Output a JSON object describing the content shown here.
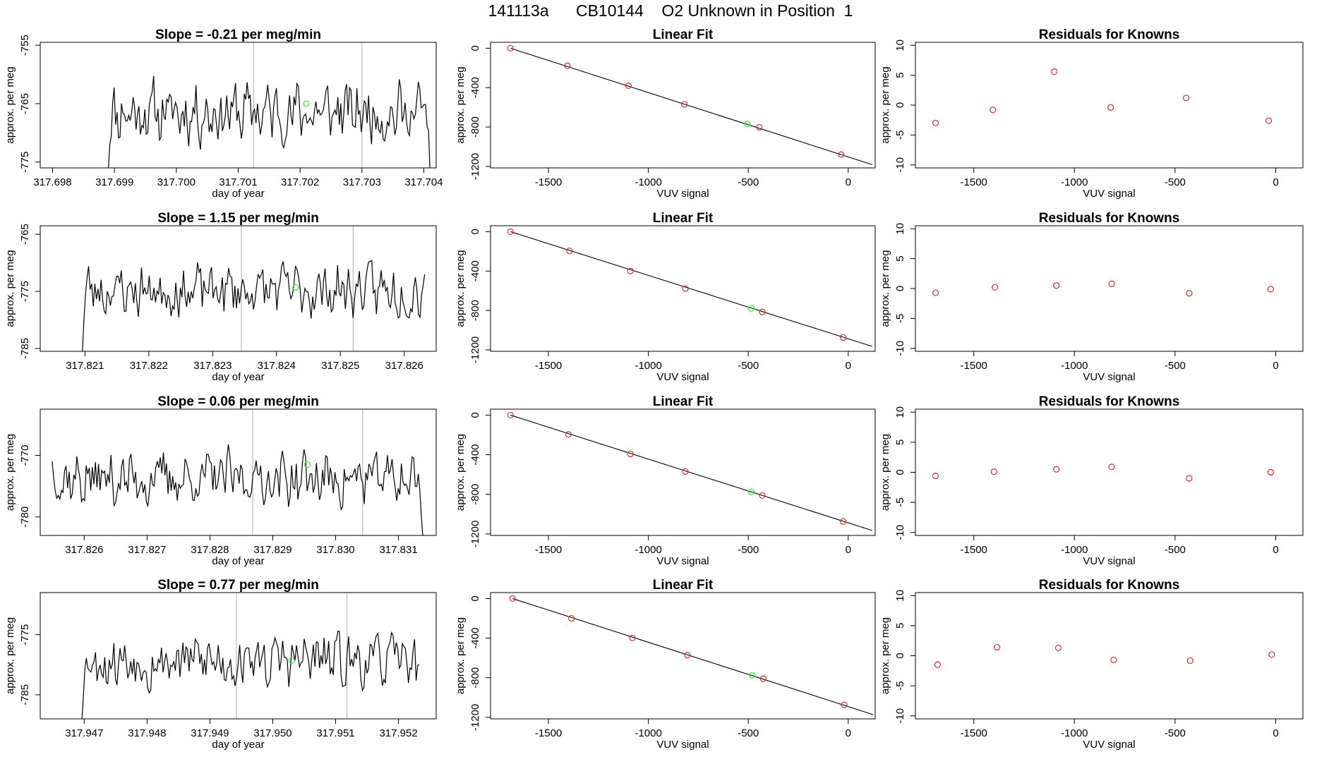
{
  "page_title": "141113a      CB10144    O2 Unknown in Position  1",
  "colors": {
    "trace": "#000000",
    "known_point": "#cc3333",
    "unknown_point": "#33ee33",
    "marker_line": "#bbbbbb"
  },
  "chart_data": [
    {
      "type": "line",
      "panel": "time-series",
      "row": 0,
      "title": "Slope =  -0.21  per meg/min",
      "xlabel": "day of year",
      "ylabel": "approx. per meg",
      "xlim": [
        317.6978,
        317.7042
      ],
      "ylim": [
        -776,
        -754.5
      ],
      "xticks": [
        317.698,
        317.699,
        317.7,
        317.701,
        317.702,
        317.703,
        317.704
      ],
      "xtick_labels": [
        "317.698",
        "317.699",
        "317.700",
        "317.701",
        "317.702",
        "317.703",
        "317.704"
      ],
      "yticks": [
        -755,
        -765,
        -775
      ],
      "ytick_labels": [
        "-755",
        "-765",
        "-775"
      ],
      "series": {
        "start": 317.6989,
        "end": 317.7041,
        "points": 221,
        "mean": -766.5,
        "amplitude": 4.2,
        "seed": 11,
        "drop_start": -776.5,
        "drop_end": -776.5
      },
      "unknown_marker": {
        "x": 317.7021,
        "y": -765.0
      },
      "vlines": [
        317.70125,
        317.703
      ]
    },
    {
      "type": "scatter",
      "panel": "linear-fit",
      "row": 0,
      "title": "Linear Fit",
      "xlabel": "VUV signal",
      "ylabel": "approx. per meg",
      "xlim": [
        -1790,
        135
      ],
      "ylim": [
        -1215,
        60
      ],
      "xticks": [
        -1500,
        -1000,
        -500,
        0
      ],
      "xtick_labels": [
        "-1500",
        "-1000",
        "-500",
        "0"
      ],
      "yticks": [
        0,
        -400,
        -800,
        -1200
      ],
      "ytick_labels": [
        "0",
        "-400",
        "-800",
        "-1200"
      ],
      "knowns": [
        [
          -1690,
          0
        ],
        [
          -1405,
          -178
        ],
        [
          -1100,
          -380
        ],
        [
          -820,
          -570
        ],
        [
          -445,
          -802
        ],
        [
          -35,
          -1080
        ]
      ],
      "unknown": [
        -505,
        -770
      ],
      "fit_line": [
        [
          -1690,
          0
        ],
        [
          120,
          -1182
        ]
      ]
    },
    {
      "type": "scatter",
      "panel": "residuals",
      "row": 0,
      "title": "Residuals for Knowns",
      "xlabel": "VUV signal",
      "ylabel": "approx. per meg",
      "xlim": [
        -1790,
        135
      ],
      "ylim": [
        -10.5,
        10.5
      ],
      "xticks": [
        -1500,
        -1000,
        -500,
        0
      ],
      "xtick_labels": [
        "-1500",
        "-1000",
        "-500",
        "0"
      ],
      "yticks": [
        10,
        5,
        0,
        -5,
        -10
      ],
      "ytick_labels": [
        "10",
        "5",
        "0",
        "-5",
        "-10"
      ],
      "points": [
        [
          -1690,
          -3.0
        ],
        [
          -1405,
          -0.8
        ],
        [
          -1100,
          5.6
        ],
        [
          -820,
          -0.4
        ],
        [
          -445,
          1.2
        ],
        [
          -35,
          -2.6
        ]
      ]
    },
    {
      "type": "line",
      "panel": "time-series",
      "row": 1,
      "title": "Slope =  1.15  per meg/min",
      "xlabel": "day of year",
      "ylabel": "approx. per meg",
      "xlim": [
        317.8203,
        317.8265
      ],
      "ylim": [
        -785.5,
        -763.5
      ],
      "xticks": [
        317.821,
        317.822,
        317.823,
        317.824,
        317.825,
        317.826
      ],
      "xtick_labels": [
        "317.821",
        "317.822",
        "317.823",
        "317.824",
        "317.825",
        "317.826"
      ],
      "yticks": [
        -765,
        -775,
        -785
      ],
      "ytick_labels": [
        "-765",
        "-775",
        "-785"
      ],
      "series": {
        "start": 317.82096,
        "end": 317.82632,
        "points": 221,
        "mean": -774.8,
        "amplitude": 3.8,
        "seed": 23,
        "drop_start": -785.8,
        "drop_end": -772.0
      },
      "unknown_marker": {
        "x": 317.8243,
        "y": -774.3
      },
      "vlines": [
        317.82345,
        317.8252
      ]
    },
    {
      "type": "scatter",
      "panel": "linear-fit",
      "row": 1,
      "title": "Linear Fit",
      "xlabel": "VUV signal",
      "ylabel": "approx. per meg",
      "xlim": [
        -1790,
        135
      ],
      "ylim": [
        -1215,
        60
      ],
      "xticks": [
        -1500,
        -1000,
        -500,
        0
      ],
      "xtick_labels": [
        "-1500",
        "-1000",
        "-500",
        "0"
      ],
      "yticks": [
        0,
        -400,
        -800,
        -1200
      ],
      "ytick_labels": [
        "0",
        "-400",
        "-800",
        "-1200"
      ],
      "knowns": [
        [
          -1690,
          0
        ],
        [
          -1395,
          -195
        ],
        [
          -1090,
          -400
        ],
        [
          -815,
          -578
        ],
        [
          -430,
          -815
        ],
        [
          -25,
          -1075
        ]
      ],
      "unknown": [
        -485,
        -780
      ],
      "fit_line": [
        [
          -1690,
          0
        ],
        [
          120,
          -1165
        ]
      ]
    },
    {
      "type": "scatter",
      "panel": "residuals",
      "row": 1,
      "title": "Residuals for Knowns",
      "xlabel": "VUV signal",
      "ylabel": "approx. per meg",
      "xlim": [
        -1790,
        135
      ],
      "ylim": [
        -10.5,
        10.5
      ],
      "xticks": [
        -1500,
        -1000,
        -500,
        0
      ],
      "xtick_labels": [
        "-1500",
        "-1000",
        "-500",
        "0"
      ],
      "yticks": [
        10,
        5,
        0,
        -5,
        -10
      ],
      "ytick_labels": [
        "10",
        "5",
        "0",
        "-5",
        "-10"
      ],
      "points": [
        [
          -1690,
          -0.7
        ],
        [
          -1395,
          0.2
        ],
        [
          -1090,
          0.5
        ],
        [
          -815,
          0.8
        ],
        [
          -430,
          -0.8
        ],
        [
          -25,
          -0.1
        ]
      ]
    },
    {
      "type": "line",
      "panel": "time-series",
      "row": 2,
      "title": "Slope =  0.06  per meg/min",
      "xlabel": "day of year",
      "ylabel": "approx. per meg",
      "xlim": [
        317.8253,
        317.8316
      ],
      "ylim": [
        -783,
        -762.5
      ],
      "xticks": [
        317.826,
        317.827,
        317.828,
        317.829,
        317.83,
        317.831
      ],
      "xtick_labels": [
        "317.826",
        "317.827",
        "317.828",
        "317.829",
        "317.830",
        "317.831"
      ],
      "yticks": [
        -770,
        -780
      ],
      "ytick_labels": [
        "-770",
        "-780"
      ],
      "series": {
        "start": 317.82549,
        "end": 317.83139,
        "points": 241,
        "mean": -773.8,
        "amplitude": 3.6,
        "seed": 37,
        "drop_start": -771.0,
        "drop_end": -783.5
      },
      "unknown_marker": {
        "x": 317.82955,
        "y": -771.5
      },
      "vlines": [
        317.82868,
        317.83043
      ]
    },
    {
      "type": "scatter",
      "panel": "linear-fit",
      "row": 2,
      "title": "Linear Fit",
      "xlabel": "VUV signal",
      "ylabel": "approx. per meg",
      "xlim": [
        -1790,
        135
      ],
      "ylim": [
        -1215,
        60
      ],
      "xticks": [
        -1500,
        -1000,
        -500,
        0
      ],
      "xtick_labels": [
        "-1500",
        "-1000",
        "-500",
        "0"
      ],
      "yticks": [
        0,
        -400,
        -800,
        -1200
      ],
      "ytick_labels": [
        "0",
        "-400",
        "-800",
        "-1200"
      ],
      "knowns": [
        [
          -1690,
          0
        ],
        [
          -1400,
          -195
        ],
        [
          -1090,
          -392
        ],
        [
          -815,
          -570
        ],
        [
          -430,
          -812
        ],
        [
          -25,
          -1075
        ]
      ],
      "unknown": [
        -485,
        -778
      ],
      "fit_line": [
        [
          -1690,
          0
        ],
        [
          120,
          -1165
        ]
      ]
    },
    {
      "type": "scatter",
      "panel": "residuals",
      "row": 2,
      "title": "Residuals for Knowns",
      "xlabel": "VUV signal",
      "ylabel": "approx. per meg",
      "xlim": [
        -1790,
        135
      ],
      "ylim": [
        -10.5,
        10.5
      ],
      "xticks": [
        -1500,
        -1000,
        -500,
        0
      ],
      "xtick_labels": [
        "-1500",
        "-1000",
        "-500",
        "0"
      ],
      "yticks": [
        10,
        5,
        0,
        -5,
        -10
      ],
      "ytick_labels": [
        "10",
        "5",
        "0",
        "-5",
        "-10"
      ],
      "points": [
        [
          -1690,
          -0.6
        ],
        [
          -1400,
          0.1
        ],
        [
          -1090,
          0.5
        ],
        [
          -815,
          0.9
        ],
        [
          -430,
          -1.0
        ],
        [
          -25,
          0.0
        ]
      ]
    },
    {
      "type": "line",
      "panel": "time-series",
      "row": 3,
      "title": "Slope =  0.77  per meg/min",
      "xlabel": "day of year",
      "ylabel": "approx. per meg",
      "xlim": [
        317.9463,
        317.9526
      ],
      "ylim": [
        -789,
        -768
      ],
      "xticks": [
        317.947,
        317.948,
        317.949,
        317.95,
        317.951,
        317.952
      ],
      "xtick_labels": [
        "317.947",
        "317.948",
        "317.949",
        "317.950",
        "317.951",
        "317.952"
      ],
      "yticks": [
        -775,
        -785
      ],
      "ytick_labels": [
        "-775",
        "-785"
      ],
      "series": {
        "start": 317.94696,
        "end": 317.95233,
        "points": 221,
        "mean": -779.3,
        "amplitude": 3.7,
        "seed": 53,
        "drop_start": -789.5,
        "drop_end": -780.0
      },
      "unknown_marker": {
        "x": 317.9503,
        "y": -779.3
      },
      "vlines": [
        317.94942,
        317.95118
      ]
    },
    {
      "type": "scatter",
      "panel": "linear-fit",
      "row": 3,
      "title": "Linear Fit",
      "xlabel": "VUV signal",
      "ylabel": "approx. per meg",
      "xlim": [
        -1790,
        135
      ],
      "ylim": [
        -1215,
        60
      ],
      "xticks": [
        -1500,
        -1000,
        -500,
        0
      ],
      "xtick_labels": [
        "-1500",
        "-1000",
        "-500",
        "0"
      ],
      "yticks": [
        0,
        -400,
        -800,
        -1200
      ],
      "ytick_labels": [
        "0",
        "-400",
        "-800",
        "-1200"
      ],
      "knowns": [
        [
          -1680,
          0
        ],
        [
          -1385,
          -200
        ],
        [
          -1080,
          -398
        ],
        [
          -805,
          -572
        ],
        [
          -425,
          -810
        ],
        [
          -20,
          -1073
        ]
      ],
      "unknown": [
        -480,
        -775
      ],
      "fit_line": [
        [
          -1680,
          0
        ],
        [
          125,
          -1172
        ]
      ]
    },
    {
      "type": "scatter",
      "panel": "residuals",
      "row": 3,
      "title": "Residuals for Knowns",
      "xlabel": "VUV signal",
      "ylabel": "approx. per meg",
      "xlim": [
        -1790,
        135
      ],
      "ylim": [
        -10.5,
        10.5
      ],
      "xticks": [
        -1500,
        -1000,
        -500,
        0
      ],
      "xtick_labels": [
        "-1500",
        "-1000",
        "-500",
        "0"
      ],
      "yticks": [
        10,
        5,
        0,
        -5,
        -10
      ],
      "ytick_labels": [
        "10",
        "5",
        "0",
        "-5",
        "-10"
      ],
      "points": [
        [
          -1680,
          -1.5
        ],
        [
          -1385,
          1.4
        ],
        [
          -1080,
          1.3
        ],
        [
          -805,
          -0.7
        ],
        [
          -425,
          -0.8
        ],
        [
          -20,
          0.2
        ]
      ]
    }
  ]
}
